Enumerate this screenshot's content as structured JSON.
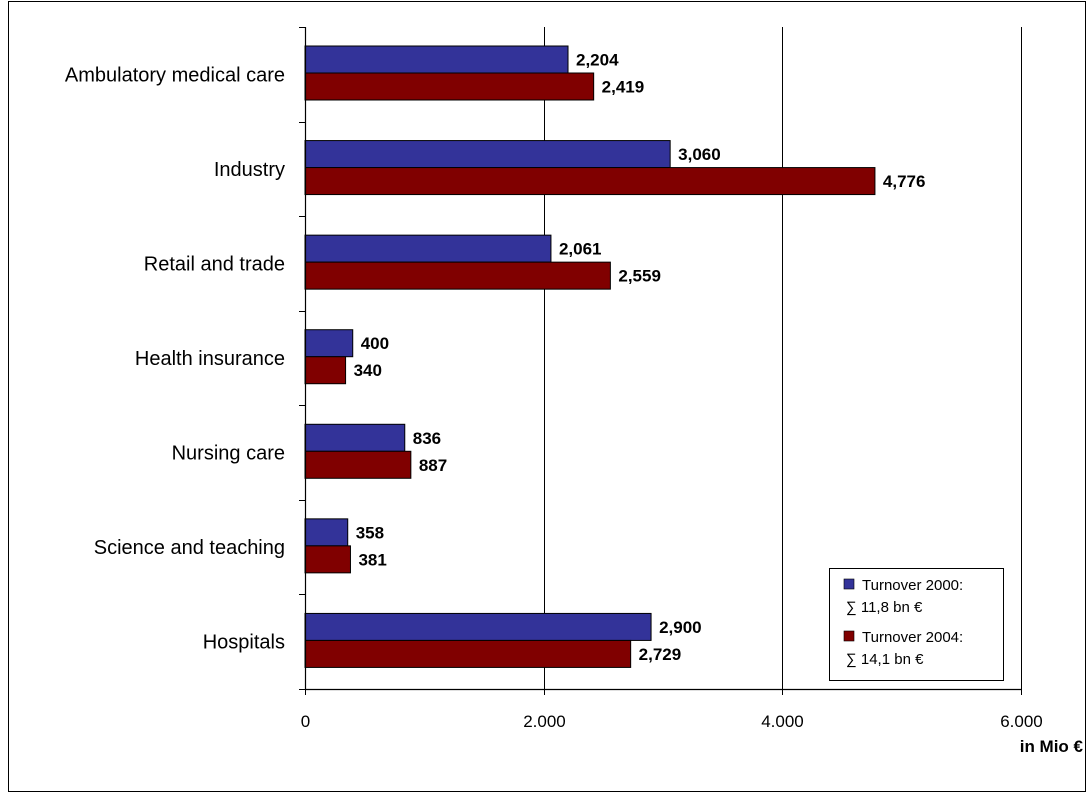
{
  "chart_data": {
    "type": "bar",
    "orientation": "horizontal",
    "categories": [
      "Ambulatory medical care",
      "Industry",
      "Retail and trade",
      "Health insurance",
      "Nursing care",
      "Science and teaching",
      "Hospitals"
    ],
    "series": [
      {
        "name": "Turnover 2000:",
        "subname": "∑ 11,8 bn €",
        "color": "#333399",
        "values": [
          2204,
          3060,
          2061,
          400,
          836,
          358,
          2900
        ],
        "labels": [
          "2,204",
          "3,060",
          "2,061",
          "400",
          "836",
          "358",
          "2,900"
        ]
      },
      {
        "name": "Turnover 2004:",
        "subname": "∑ 14,1 bn €",
        "color": "#800000",
        "values": [
          2419,
          4776,
          2559,
          340,
          887,
          381,
          2729
        ],
        "labels": [
          "2,419",
          "4,776",
          "2,559",
          "340",
          "887",
          "381",
          "2,729"
        ]
      }
    ],
    "xlim": [
      0,
      6000
    ],
    "xticks": [
      0,
      2000,
      4000,
      6000
    ],
    "xtick_labels": [
      "0",
      "2.000",
      "4.000",
      "6.000"
    ],
    "xlabel": "in Mio €",
    "grid": true,
    "legend_position": "bottom-right"
  }
}
